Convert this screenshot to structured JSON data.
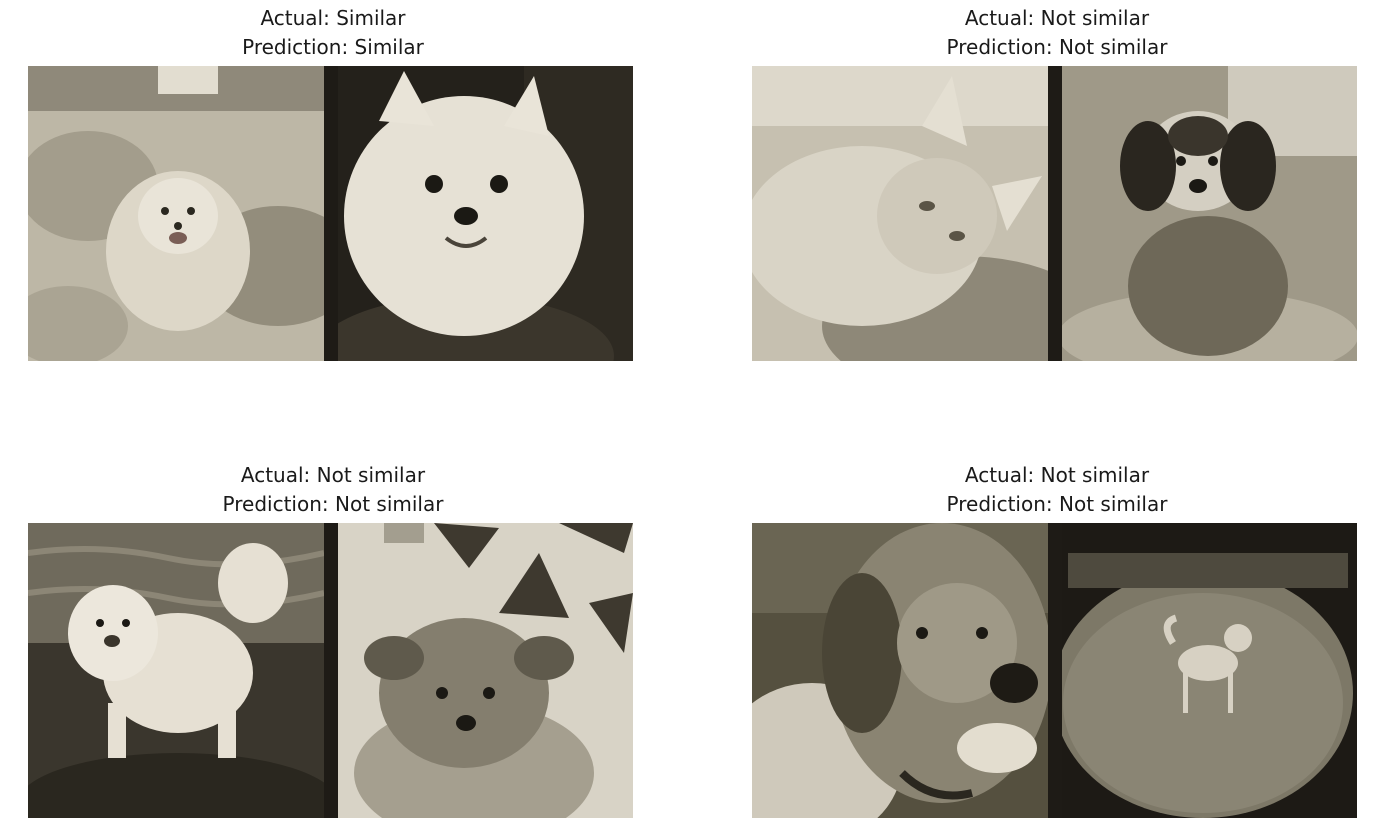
{
  "pairs": [
    {
      "actual": "Actual: Similar",
      "prediction": "Prediction: Similar",
      "left_image": "pomeranian-on-blanket-photo",
      "right_image": "white-pomeranian-closeup-photo"
    },
    {
      "actual": "Actual: Not similar",
      "prediction": "Prediction: Not similar",
      "left_image": "cat-lying-photo",
      "right_image": "spaniel-in-basket-photo"
    },
    {
      "actual": "Actual: Not similar",
      "prediction": "Prediction: Not similar",
      "left_image": "pekingese-by-water-photo",
      "right_image": "yorkie-on-quilt-photo"
    },
    {
      "actual": "Actual: Not similar",
      "prediction": "Prediction: Not similar",
      "left_image": "pointer-dog-closeup-photo",
      "right_image": "shiba-on-lawn-photo"
    }
  ],
  "colors": {
    "sepia_light": "#e9e4d8",
    "sepia_mid": "#a39d8c",
    "sepia_dark": "#3b362c",
    "divider": "#1e1b16"
  }
}
